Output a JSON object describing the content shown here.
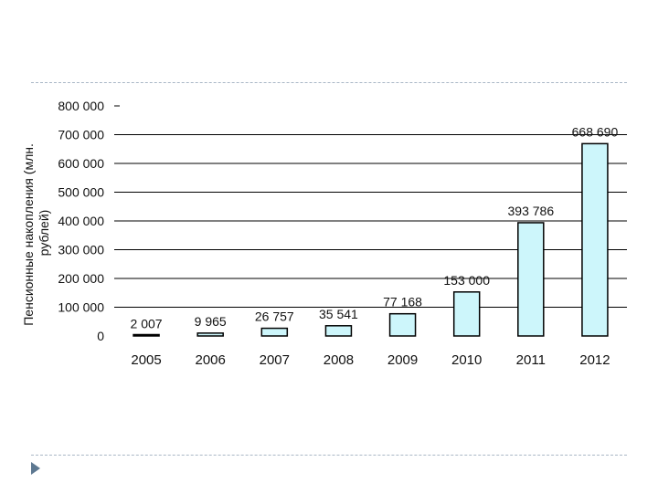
{
  "chart_data": {
    "type": "bar",
    "ylabel": [
      "Пенсионные накопления (млн.",
      "рублей)"
    ],
    "categories": [
      "2005",
      "2006",
      "2007",
      "2008",
      "2009",
      "2010",
      "2011",
      "2012"
    ],
    "values": [
      2007,
      9965,
      26757,
      35541,
      77168,
      153000,
      393786,
      668690
    ],
    "data_labels": [
      "2 007",
      "9 965",
      "26 757",
      "35 541",
      "77 168",
      "153 000",
      "393 786",
      "668 690"
    ],
    "yticks": [
      "0",
      "100 000",
      "200 000",
      "300 000",
      "400 000",
      "500 000",
      "600 000",
      "700 000",
      "800 000"
    ],
    "ylim": [
      0,
      800000
    ],
    "grid": true,
    "colors": {
      "bar_fill": "#cdf6fb",
      "bar_stroke": "#000000",
      "grid": "#000000"
    }
  },
  "icons": {
    "bullet": "triangle-bullet-icon"
  }
}
